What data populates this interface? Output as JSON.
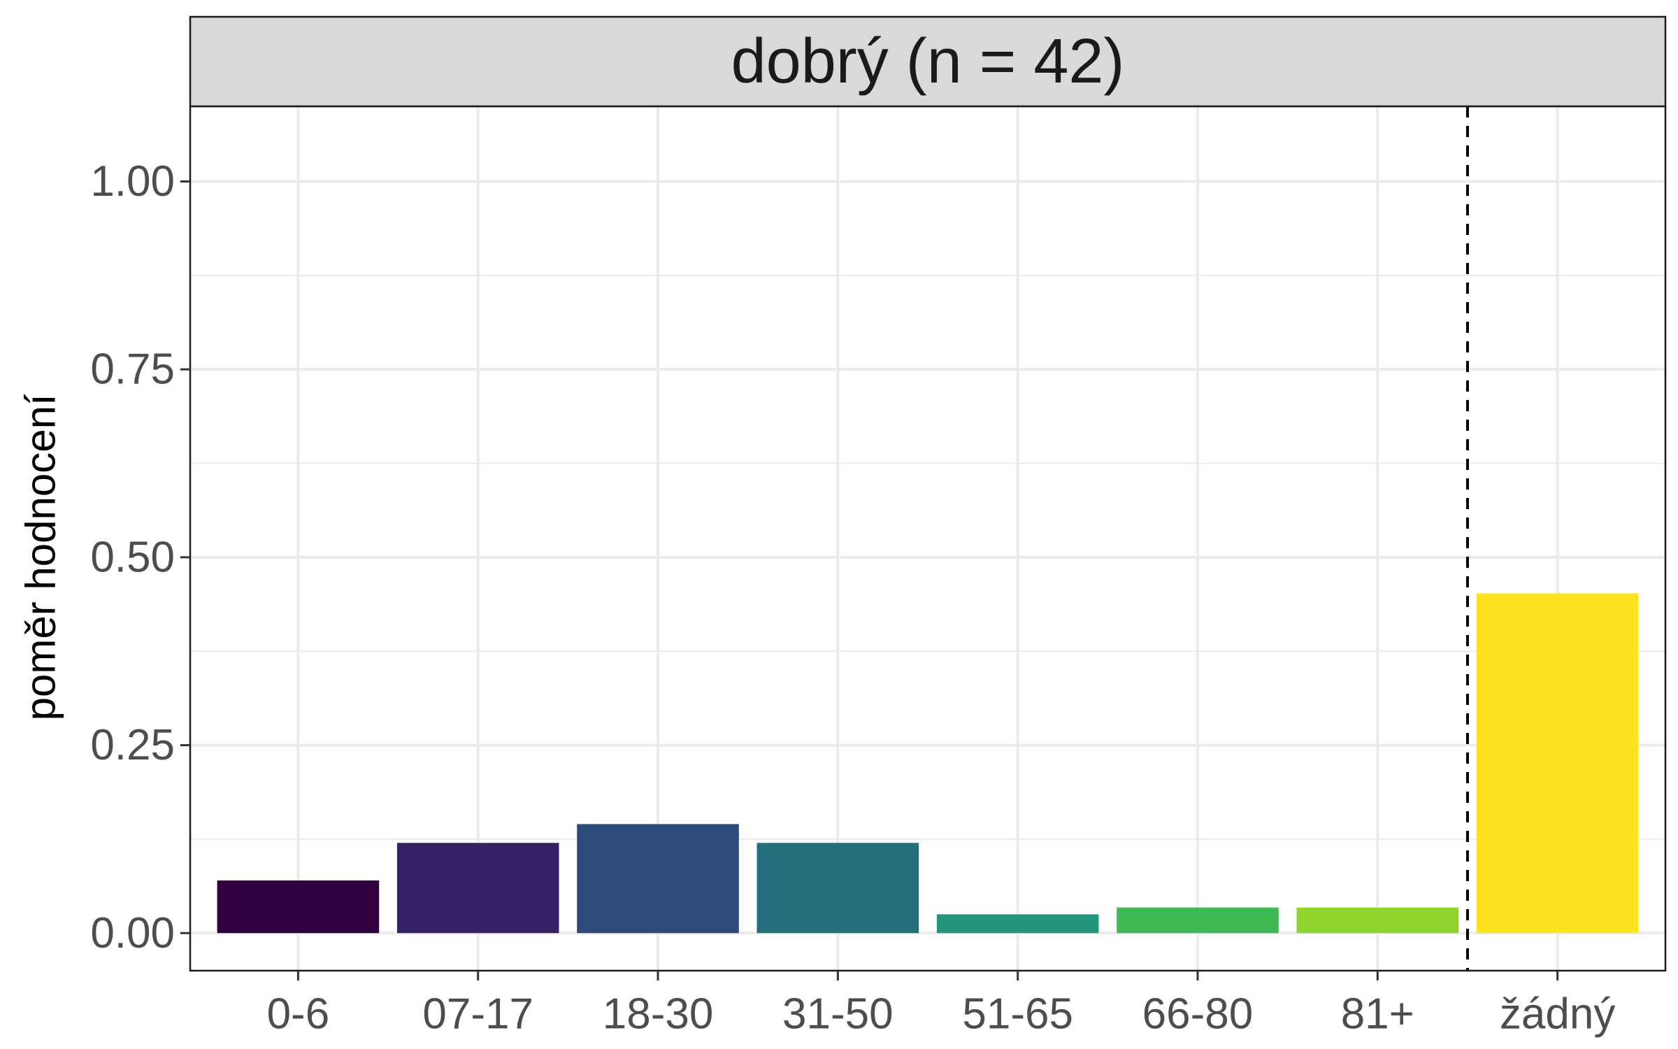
{
  "chart_data": {
    "type": "bar",
    "facet_title": "dobrý (n = 42)",
    "ylabel": "poměr hodnocení",
    "xlabel": "",
    "categories": [
      "0-6",
      "07-17",
      "18-30",
      "31-50",
      "51-65",
      "66-80",
      "81+",
      "žádný"
    ],
    "values": [
      0.07,
      0.12,
      0.145,
      0.12,
      0.025,
      0.034,
      0.034,
      0.452
    ],
    "colors": [
      "#33003f",
      "#382266",
      "#2c4a7a",
      "#226e7c",
      "#22957a",
      "#3fb954",
      "#8fd42c",
      "#fce31e"
    ],
    "ylim": [
      -0.05,
      1.1
    ],
    "y_ticks": [
      0,
      0.25,
      0.5,
      0.75,
      1.0
    ],
    "y_tick_labels": [
      "0.00",
      "0.25",
      "0.50",
      "0.75",
      "1.00"
    ],
    "reference_line": {
      "after_category_index": 6,
      "style": "dashed",
      "color": "#000000"
    },
    "grid": true,
    "legend": "none",
    "panel_border_color": "#1a1a1a",
    "strip_fill": "#d9d9d9",
    "gridline_color": "#ebebeb"
  }
}
